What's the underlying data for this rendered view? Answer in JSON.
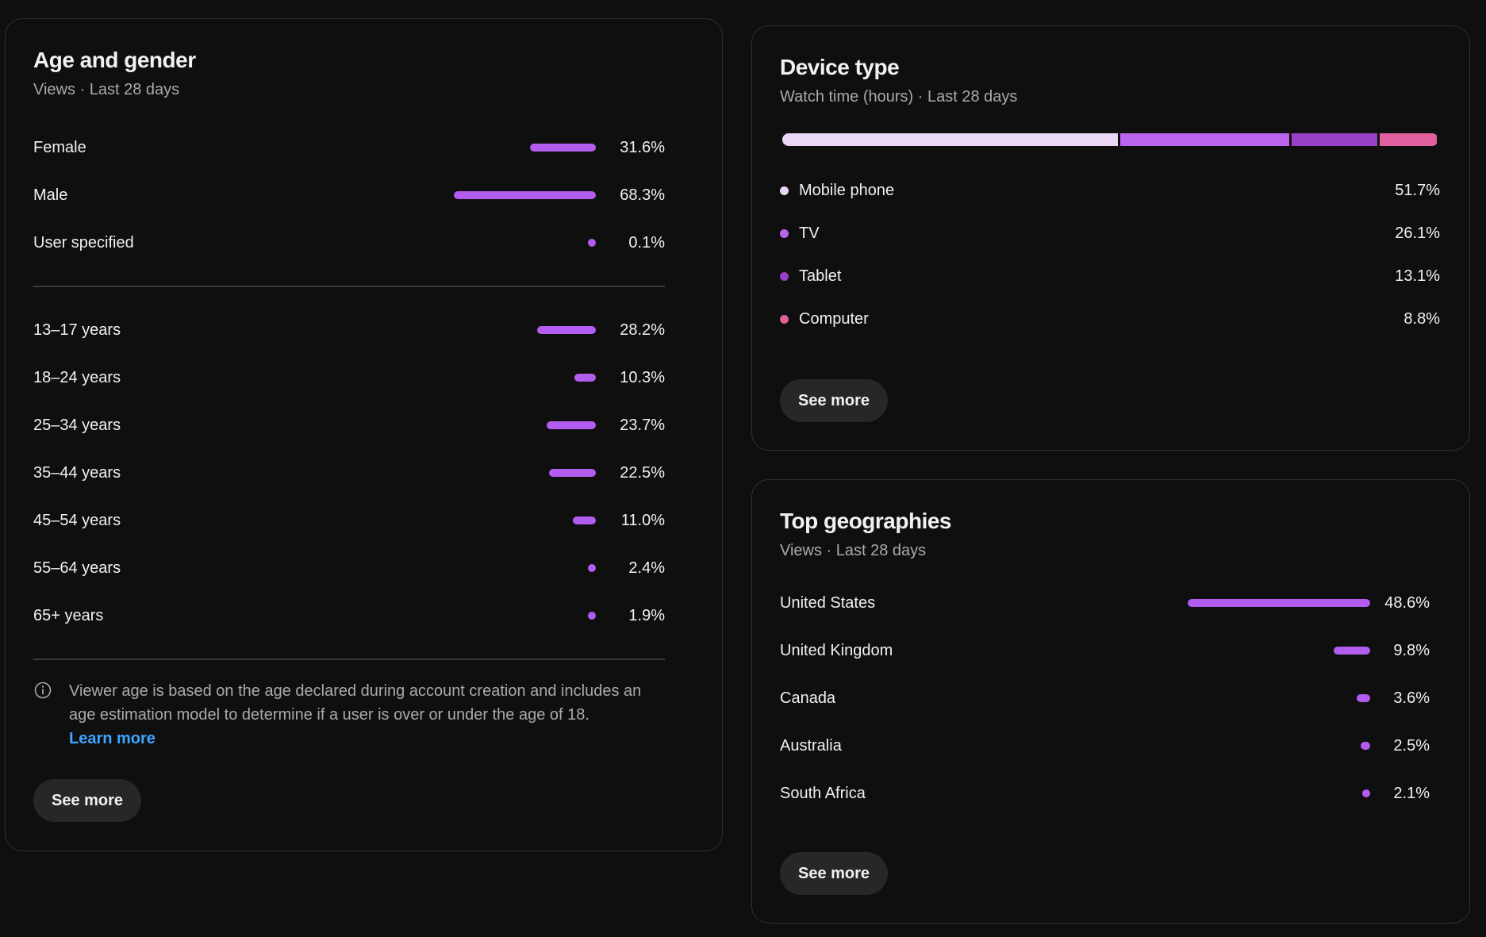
{
  "age_gender": {
    "title": "Age and gender",
    "subtitle": "Views · Last 28 days",
    "gender": [
      {
        "label": "Female",
        "value": "31.6%",
        "fraction": 0.316
      },
      {
        "label": "Male",
        "value": "68.3%",
        "fraction": 0.683
      },
      {
        "label": "User specified",
        "value": "0.1%",
        "fraction": 0.001
      }
    ],
    "ages": [
      {
        "label": "13–17 years",
        "value": "28.2%",
        "fraction": 0.282
      },
      {
        "label": "18–24 years",
        "value": "10.3%",
        "fraction": 0.103
      },
      {
        "label": "25–34 years",
        "value": "23.7%",
        "fraction": 0.237
      },
      {
        "label": "35–44 years",
        "value": "22.5%",
        "fraction": 0.225
      },
      {
        "label": "45–54 years",
        "value": "11.0%",
        "fraction": 0.11
      },
      {
        "label": "55–64 years",
        "value": "2.4%",
        "fraction": 0.024
      },
      {
        "label": "65+ years",
        "value": "1.9%",
        "fraction": 0.019
      }
    ],
    "note": "Viewer age is based on the age declared during account creation and includes an age estimation model to determine if a user is over or under the age of 18.",
    "learn_more": "Learn more",
    "see_more": "See more"
  },
  "device": {
    "title": "Device type",
    "subtitle": "Watch time (hours) · Last 28 days",
    "items": [
      {
        "label": "Mobile phone",
        "value": "51.7%",
        "fraction": 0.517,
        "color": "#ebd7f5"
      },
      {
        "label": "TV",
        "value": "26.1%",
        "fraction": 0.261,
        "color": "#bb64ee"
      },
      {
        "label": "Tablet",
        "value": "13.1%",
        "fraction": 0.131,
        "color": "#9a3fc8"
      },
      {
        "label": "Computer",
        "value": "8.8%",
        "fraction": 0.088,
        "color": "#e0609e"
      }
    ],
    "see_more": "See more"
  },
  "geo": {
    "title": "Top geographies",
    "subtitle": "Views · Last 28 days",
    "items": [
      {
        "label": "United States",
        "value": "48.6%",
        "fraction": 0.486
      },
      {
        "label": "United Kingdom",
        "value": "9.8%",
        "fraction": 0.098
      },
      {
        "label": "Canada",
        "value": "3.6%",
        "fraction": 0.036
      },
      {
        "label": "Australia",
        "value": "2.5%",
        "fraction": 0.025
      },
      {
        "label": "South Africa",
        "value": "2.1%",
        "fraction": 0.021
      }
    ],
    "see_more": "See more"
  },
  "colors": {
    "bar": "#b35cf0",
    "background": "#0f0f0f",
    "card_border": "#303030",
    "link": "#3ea6ff"
  }
}
